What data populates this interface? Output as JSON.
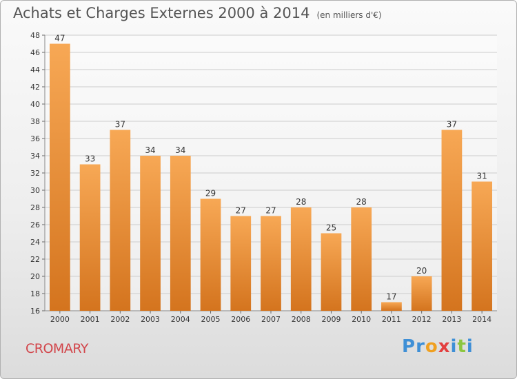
{
  "title": "Achats et Charges Externes 2000 à 2014",
  "subtitle": "(en milliers d'€)",
  "city": "CROMARY",
  "logo": {
    "letters": [
      "P",
      "r",
      "o",
      "x",
      "i",
      "t",
      "i"
    ],
    "colors": [
      "#3e8fd6",
      "#3e8fd6",
      "#f0a020",
      "#e33f3f",
      "#3e8fd6",
      "#8cc63f",
      "#3e8fd6"
    ]
  },
  "colors": {
    "bar_light": "#f7a855",
    "bar_dark": "#d4741e",
    "grid": "#cccccc"
  },
  "chart_data": {
    "type": "bar",
    "categories": [
      "2000",
      "2001",
      "2002",
      "2003",
      "2004",
      "2005",
      "2006",
      "2007",
      "2008",
      "2009",
      "2010",
      "2011",
      "2012",
      "2013",
      "2014"
    ],
    "values": [
      47,
      33,
      37,
      34,
      34,
      29,
      27,
      27,
      28,
      25,
      28,
      17,
      20,
      37,
      31
    ],
    "ylim": [
      16,
      48
    ],
    "yticks": [
      16,
      18,
      20,
      22,
      24,
      26,
      28,
      30,
      32,
      34,
      36,
      38,
      40,
      42,
      44,
      46,
      48
    ],
    "grid": true,
    "data_labels": true
  }
}
